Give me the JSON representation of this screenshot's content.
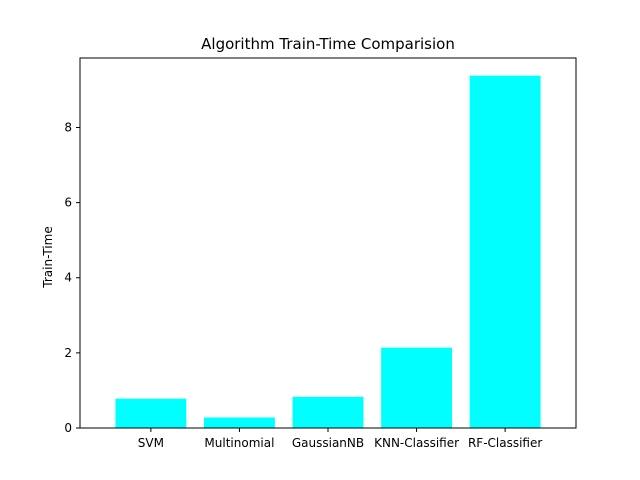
{
  "chart_data": {
    "type": "bar",
    "title": "Algorithm Train-Time Comparision",
    "xlabel": "",
    "ylabel": "Train-Time",
    "categories": [
      "SVM",
      "Multinomial",
      "GaussianNB",
      "KNN-Classifier",
      "RF-Classifier"
    ],
    "values": [
      0.78,
      0.28,
      0.83,
      2.14,
      9.38
    ],
    "ylim": [
      0,
      9.85
    ],
    "yticks": [
      0,
      2,
      4,
      6,
      8
    ],
    "bar_color": "#00ffff",
    "grid": false,
    "legend": "none"
  }
}
